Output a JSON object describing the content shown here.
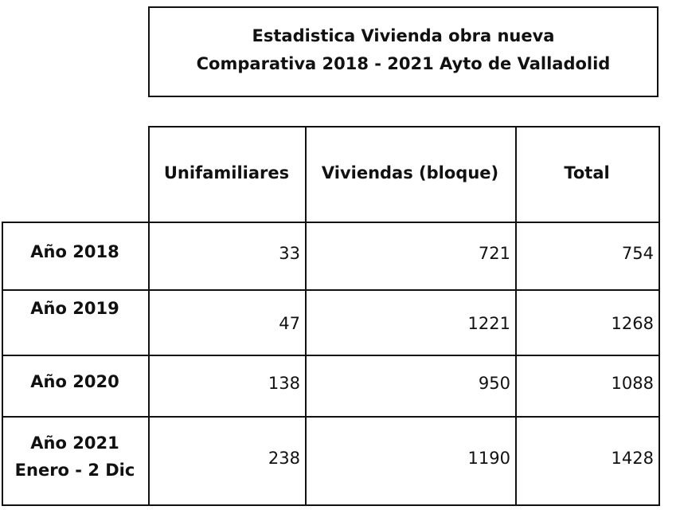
{
  "header": {
    "title": [
      "Estadistica Vivienda obra nueva",
      "Comparativa 2018 - 2021 Ayto de Valladolid"
    ]
  },
  "table": {
    "columns": [
      "Unifamiliares",
      "Viviendas (bloque)",
      "Total"
    ],
    "rows": [
      {
        "label": [
          "Año 2018"
        ],
        "values": [
          33,
          721,
          754
        ]
      },
      {
        "label": [
          "Año 2019"
        ],
        "values": [
          47,
          1221,
          1268
        ]
      },
      {
        "label": [
          "Año 2020"
        ],
        "values": [
          138,
          950,
          1088
        ]
      },
      {
        "label": [
          "Año 2021",
          "Enero - 2 Dic"
        ],
        "values": [
          238,
          1190,
          1428
        ]
      }
    ]
  }
}
